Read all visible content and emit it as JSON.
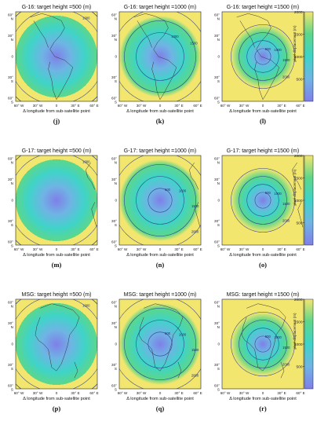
{
  "chart_data": {
    "type": "heatmap",
    "colormap": [
      "#7f7fe8",
      "#6fb4e4",
      "#3fd4c8",
      "#5cd68a",
      "#f3e66e"
    ],
    "colorbar": {
      "label": "pixel displacement (m)",
      "range": [
        0,
        2000
      ],
      "ticks": [
        500,
        1000,
        1500,
        2000
      ]
    },
    "x_ticks": [
      "60° W",
      "30° W",
      "0",
      "30° E",
      "60° E"
    ],
    "y_ticks": [
      "60° N",
      "30° N",
      "0",
      "30° S",
      "60° S"
    ],
    "xlabel": "Δ longitude from sub-satellite point",
    "contour_levels": [
      500,
      1000,
      1500,
      2000
    ],
    "rows": [
      {
        "satellite": "G-16",
        "panels": [
          {
            "letter": "(j)",
            "title": "G-16: target height =500 (m)",
            "target_height": 500,
            "basemap": "americas",
            "contours": [
              {
                "level": 1000,
                "label": "1000"
              },
              {
                "level": 1500,
                "label": "1500"
              },
              {
                "level": 2000,
                "label": "2000"
              }
            ]
          },
          {
            "letter": "(k)",
            "title": "G-16: target height =1000 (m)",
            "target_height": 1000,
            "basemap": "americas",
            "contours": [
              {
                "level": 1000,
                "label": "1000"
              },
              {
                "level": 1500,
                "label": "1500"
              },
              {
                "level": 2000,
                "label": "2000"
              }
            ]
          },
          {
            "letter": "(l)",
            "title": "G-16: target height =1500 (m)",
            "target_height": 1500,
            "basemap": "americas",
            "contours": [
              {
                "level": 500,
                "label": "500"
              },
              {
                "level": 1000,
                "label": "1000"
              },
              {
                "level": 1500,
                "label": "1500"
              },
              {
                "level": 2000,
                "label": "2000"
              }
            ]
          }
        ]
      },
      {
        "satellite": "G-17",
        "panels": [
          {
            "letter": "(m)",
            "title": "G-17: target height =500 (m)",
            "target_height": 500,
            "basemap": "pacific",
            "contours": [
              {
                "level": 1000,
                "label": "1000"
              },
              {
                "level": 1500,
                "label": "1500"
              },
              {
                "level": 2000,
                "label": "2000"
              }
            ]
          },
          {
            "letter": "(n)",
            "title": "G-17: target height =1000 (m)",
            "target_height": 1000,
            "basemap": "pacific",
            "contours": [
              {
                "level": 500,
                "label": "500"
              },
              {
                "level": 1000,
                "label": "1000"
              },
              {
                "level": 1500,
                "label": "1500"
              },
              {
                "level": 2000,
                "label": "2000"
              }
            ]
          },
          {
            "letter": "(o)",
            "title": "G-17: target height =1500 (m)",
            "target_height": 1500,
            "basemap": "pacific",
            "contours": [
              {
                "level": 500,
                "label": "500"
              },
              {
                "level": 1000,
                "label": "1000"
              },
              {
                "level": 1500,
                "label": "1500"
              },
              {
                "level": 2000,
                "label": "2000"
              }
            ]
          }
        ]
      },
      {
        "satellite": "MSG",
        "panels": [
          {
            "letter": "(p)",
            "title": "MSG: target height =500 (m)",
            "target_height": 500,
            "basemap": "africa",
            "contours": [
              {
                "level": 1000,
                "label": "1000"
              },
              {
                "level": 1500,
                "label": "1500"
              },
              {
                "level": 2000,
                "label": "2000"
              }
            ]
          },
          {
            "letter": "(q)",
            "title": "MSG: target height =1000 (m)",
            "target_height": 1000,
            "basemap": "africa",
            "contours": [
              {
                "level": 500,
                "label": "500"
              },
              {
                "level": 1000,
                "label": "1000"
              },
              {
                "level": 1500,
                "label": "1500"
              },
              {
                "level": 2000,
                "label": "2000"
              }
            ]
          },
          {
            "letter": "(r)",
            "title": "MSG: target height =1500 (m)",
            "target_height": 1500,
            "basemap": "africa",
            "contours": [
              {
                "level": 500,
                "label": "500"
              },
              {
                "level": 1000,
                "label": "1000"
              },
              {
                "level": 1500,
                "label": "1500"
              },
              {
                "level": 2000,
                "label": "2000"
              }
            ]
          }
        ]
      }
    ]
  }
}
